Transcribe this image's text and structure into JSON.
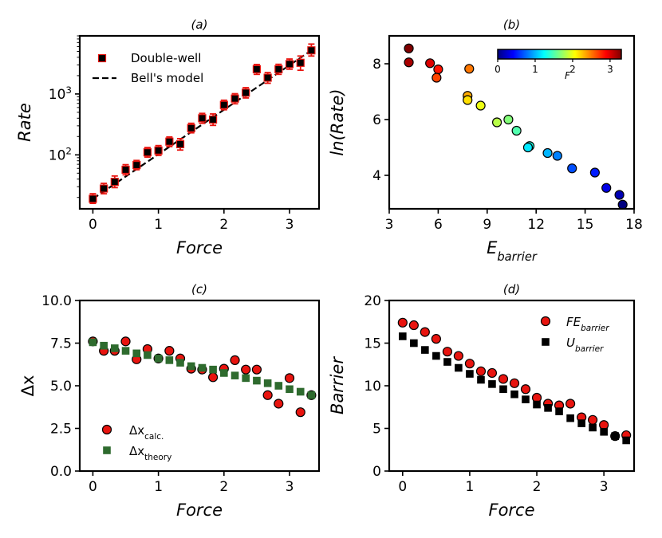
{
  "colors": {
    "red": "#e8140f",
    "errorbar": "#e8140f",
    "black": "#000000",
    "green": "#2e6b2e",
    "dashed": "#000000",
    "colormap": [
      "#00007f",
      "#0000ff",
      "#007fff",
      "#00ffff",
      "#7fff7f",
      "#ffff00",
      "#ff7f00",
      "#ff0000",
      "#7f0000"
    ]
  },
  "chart_data": [
    {
      "panel": "(a)",
      "title": "(a)",
      "type": "scatter",
      "xlabel": "Force",
      "ylabel": "Rate",
      "yscale": "log",
      "xlim": [
        -0.2,
        3.45
      ],
      "ylim": [
        13,
        9000
      ],
      "xticks": [
        0,
        1,
        2,
        3
      ],
      "xtick_labels": [
        "0",
        "1",
        "2",
        "3"
      ],
      "yticks": [
        100,
        1000
      ],
      "ytick_labels": [
        "10²",
        "10³"
      ],
      "legend": {
        "position": "upper-left",
        "entries": [
          "Double-well",
          "Bell's model"
        ]
      },
      "series": [
        {
          "name": "Double-well",
          "marker": "square",
          "x": [
            0,
            0.167,
            0.333,
            0.5,
            0.667,
            0.833,
            1.0,
            1.167,
            1.333,
            1.5,
            1.667,
            1.833,
            2.0,
            2.167,
            2.333,
            2.5,
            2.667,
            2.833,
            3.0,
            3.167,
            3.333
          ],
          "y": [
            19,
            28,
            36,
            57,
            68,
            110,
            118,
            165,
            150,
            275,
            400,
            380,
            660,
            840,
            1050,
            2550,
            1850,
            2550,
            3100,
            3250,
            5200
          ],
          "err_low": [
            3,
            5,
            7,
            10,
            11,
            18,
            20,
            28,
            30,
            45,
            70,
            75,
            110,
            150,
            190,
            450,
            350,
            450,
            550,
            800,
            1000
          ],
          "err_high": [
            4,
            6,
            9,
            12,
            13,
            22,
            24,
            32,
            35,
            55,
            80,
            90,
            130,
            170,
            220,
            500,
            400,
            520,
            650,
            950,
            1400
          ]
        },
        {
          "name": "Bell's model",
          "style": "dashed-line",
          "x": [
            0,
            3.333
          ],
          "y": [
            19,
            5200
          ]
        }
      ]
    },
    {
      "panel": "(b)",
      "title": "(b)",
      "type": "scatter",
      "xlabel": "E_barrier",
      "xlabel_main": "E",
      "xlabel_sub": "barrier",
      "ylabel": "ln(Rate)",
      "xlim": [
        3,
        18
      ],
      "ylim": [
        2.8,
        9.0
      ],
      "xticks": [
        3,
        6,
        9,
        12,
        15,
        18
      ],
      "xtick_labels": [
        "3",
        "6",
        "9",
        "12",
        "15",
        "18"
      ],
      "yticks": [
        4,
        6,
        8
      ],
      "ytick_labels": [
        "4",
        "6",
        "8"
      ],
      "colorbar": {
        "label": "F",
        "ticks": [
          0,
          1,
          2,
          3
        ],
        "tick_labels": [
          "0",
          "1",
          "2",
          "3"
        ],
        "range": [
          0,
          3.3
        ],
        "position": "top-right"
      },
      "points": [
        {
          "x": 4.2,
          "y": 8.55,
          "f": 3.333
        },
        {
          "x": 4.2,
          "y": 8.05,
          "f": 3.167
        },
        {
          "x": 5.5,
          "y": 8.02,
          "f": 3.0
        },
        {
          "x": 6.0,
          "y": 7.8,
          "f": 2.833
        },
        {
          "x": 5.9,
          "y": 7.5,
          "f": 2.667
        },
        {
          "x": 7.9,
          "y": 7.82,
          "f": 2.5
        },
        {
          "x": 7.8,
          "y": 6.85,
          "f": 2.333
        },
        {
          "x": 7.8,
          "y": 6.7,
          "f": 2.167
        },
        {
          "x": 8.6,
          "y": 6.5,
          "f": 2.0
        },
        {
          "x": 9.6,
          "y": 5.9,
          "f": 1.833
        },
        {
          "x": 10.3,
          "y": 6.0,
          "f": 1.667
        },
        {
          "x": 10.8,
          "y": 5.6,
          "f": 1.5
        },
        {
          "x": 11.6,
          "y": 5.05,
          "f": 1.333
        },
        {
          "x": 11.5,
          "y": 5.0,
          "f": 1.167
        },
        {
          "x": 12.7,
          "y": 4.8,
          "f": 1.0
        },
        {
          "x": 13.3,
          "y": 4.7,
          "f": 0.833
        },
        {
          "x": 14.2,
          "y": 4.25,
          "f": 0.667
        },
        {
          "x": 15.6,
          "y": 4.1,
          "f": 0.5
        },
        {
          "x": 16.3,
          "y": 3.55,
          "f": 0.333
        },
        {
          "x": 17.1,
          "y": 3.3,
          "f": 0.167
        },
        {
          "x": 17.3,
          "y": 2.95,
          "f": 0.0
        }
      ]
    },
    {
      "panel": "(c)",
      "title": "(c)",
      "type": "scatter",
      "xlabel": "Force",
      "ylabel": "Δx",
      "xlim": [
        -0.2,
        3.45
      ],
      "ylim": [
        0,
        10
      ],
      "xticks": [
        0,
        1,
        2,
        3
      ],
      "xtick_labels": [
        "0",
        "1",
        "2",
        "3"
      ],
      "yticks": [
        0,
        2.5,
        5.0,
        7.5,
        10.0
      ],
      "ytick_labels": [
        "0.0",
        "2.5",
        "5.0",
        "7.5",
        "10.0"
      ],
      "legend": {
        "position": "lower-left",
        "entries": [
          "Δx_calc.",
          "Δx_theory"
        ]
      },
      "series": [
        {
          "name": "Δx_calc.",
          "label_main": "Δx",
          "label_sub": "calc.",
          "marker": "circle",
          "x": [
            0,
            0.167,
            0.333,
            0.5,
            0.667,
            0.833,
            1.0,
            1.167,
            1.333,
            1.5,
            1.667,
            1.833,
            2.0,
            2.167,
            2.333,
            2.5,
            2.667,
            2.833,
            3.0,
            3.167,
            3.333
          ],
          "y": [
            7.6,
            7.05,
            7.05,
            7.6,
            6.55,
            7.15,
            6.6,
            7.05,
            6.6,
            6.0,
            5.95,
            5.5,
            6.0,
            6.5,
            5.95,
            5.95,
            4.45,
            3.95,
            5.45,
            3.45,
            4.45
          ]
        },
        {
          "name": "Δx_theory",
          "label_main": "Δx",
          "label_sub": "theory",
          "marker": "square",
          "x": [
            0,
            0.167,
            0.333,
            0.5,
            0.667,
            0.833,
            1.0,
            1.167,
            1.333,
            1.5,
            1.667,
            1.833,
            2.0,
            2.167,
            2.333,
            2.5,
            2.667,
            2.833,
            3.0,
            3.167,
            3.333
          ],
          "y": [
            7.55,
            7.35,
            7.2,
            7.05,
            6.9,
            6.8,
            6.6,
            6.5,
            6.35,
            6.15,
            6.05,
            5.95,
            5.75,
            5.6,
            5.45,
            5.3,
            5.15,
            5.0,
            4.8,
            4.65,
            4.45
          ]
        }
      ]
    },
    {
      "panel": "(d)",
      "title": "(d)",
      "type": "scatter",
      "xlabel": "Force",
      "ylabel": "Barrier",
      "xlim": [
        -0.2,
        3.45
      ],
      "ylim": [
        0,
        20
      ],
      "xticks": [
        0,
        1,
        2,
        3
      ],
      "xtick_labels": [
        "0",
        "1",
        "2",
        "3"
      ],
      "yticks": [
        0,
        5,
        10,
        15,
        20
      ],
      "ytick_labels": [
        "0",
        "5",
        "10",
        "15",
        "20"
      ],
      "legend": {
        "position": "upper-right",
        "entries": [
          "FE_barrier",
          "U_barrier"
        ]
      },
      "series": [
        {
          "name": "FE_barrier",
          "label_main": "FE",
          "label_sub": "barrier",
          "marker": "circle",
          "x": [
            0,
            0.167,
            0.333,
            0.5,
            0.667,
            0.833,
            1.0,
            1.167,
            1.333,
            1.5,
            1.667,
            1.833,
            2.0,
            2.167,
            2.333,
            2.5,
            2.667,
            2.833,
            3.0,
            3.167,
            3.333
          ],
          "y": [
            17.4,
            17.1,
            16.3,
            15.5,
            14.0,
            13.5,
            12.6,
            11.7,
            11.5,
            10.8,
            10.3,
            9.6,
            8.6,
            7.9,
            7.7,
            7.9,
            6.3,
            6.0,
            5.4,
            4.1,
            4.2
          ]
        },
        {
          "name": "U_barrier",
          "label_main": "U",
          "label_sub": "barrier",
          "marker": "square",
          "x": [
            0,
            0.167,
            0.333,
            0.5,
            0.667,
            0.833,
            1.0,
            1.167,
            1.333,
            1.5,
            1.667,
            1.833,
            2.0,
            2.167,
            2.333,
            2.5,
            2.667,
            2.833,
            3.0,
            3.167,
            3.333
          ],
          "y": [
            15.8,
            15.0,
            14.2,
            13.5,
            12.8,
            12.1,
            11.4,
            10.7,
            10.2,
            9.6,
            9.0,
            8.4,
            7.8,
            7.4,
            7.0,
            6.2,
            5.6,
            5.1,
            4.6,
            4.1,
            3.6
          ]
        }
      ]
    }
  ]
}
